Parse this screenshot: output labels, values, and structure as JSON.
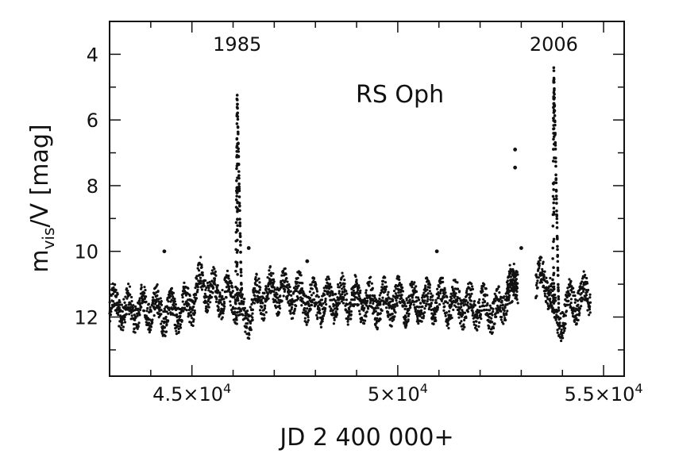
{
  "chart_data": {
    "type": "scatter",
    "title": "RS Oph",
    "xlabel": "JD 2 400 000+",
    "ylabel_main": "m",
    "ylabel_sub": "vis",
    "ylabel_rest": "/V [mag]",
    "xlim": [
      43000,
      55500
    ],
    "ylim": [
      13.8,
      3.0
    ],
    "y_inverted": true,
    "grid": false,
    "x_ticks_labeled": [
      {
        "value": 45000,
        "mantissa": "4.5×10",
        "exp": "4"
      },
      {
        "value": 50000,
        "mantissa": "5×10",
        "exp": "4"
      },
      {
        "value": 55000,
        "mantissa": "5.5×10",
        "exp": "4"
      }
    ],
    "y_ticks_labeled": [
      4,
      6,
      8,
      10,
      12
    ],
    "annotations": [
      {
        "text": "1985",
        "x": 46100,
        "y": 3.8
      },
      {
        "text": "2006",
        "x": 53790,
        "y": 3.8
      }
    ],
    "series": [
      {
        "marker": "dot",
        "color": "#111111",
        "quiescent_level": [
          [
            43000,
            11.6
          ],
          [
            43500,
            11.8
          ],
          [
            44000,
            11.7
          ],
          [
            44500,
            11.9
          ],
          [
            45000,
            11.6
          ],
          [
            45200,
            10.9
          ],
          [
            45600,
            11.3
          ],
          [
            46000,
            11.4
          ],
          [
            46300,
            12.1
          ],
          [
            46600,
            11.4
          ],
          [
            47000,
            11.2
          ],
          [
            47500,
            11.3
          ],
          [
            48000,
            11.6
          ],
          [
            48500,
            11.4
          ],
          [
            49000,
            11.5
          ],
          [
            49500,
            11.6
          ],
          [
            50000,
            11.5
          ],
          [
            50500,
            11.6
          ],
          [
            51000,
            11.5
          ],
          [
            51500,
            11.6
          ],
          [
            52000,
            11.7
          ],
          [
            52500,
            11.8
          ],
          [
            52700,
            11.0
          ],
          [
            53000,
            11.2
          ],
          [
            53300,
            10.8
          ],
          [
            53700,
            11.0
          ],
          [
            53850,
            12.3
          ],
          [
            54100,
            11.7
          ],
          [
            54400,
            11.4
          ],
          [
            54600,
            11.3
          ]
        ],
        "outbursts": [
          {
            "peak_x": 46100,
            "peak_y": 5.2,
            "rise": 40,
            "decay": 110
          },
          {
            "peak_x": 53790,
            "peak_y": 4.4,
            "rise": 30,
            "decay": 120
          }
        ],
        "isolated_points": [
          [
            52850,
            6.9
          ],
          [
            52850,
            7.45
          ],
          [
            44330,
            10.0
          ],
          [
            46380,
            9.9
          ],
          [
            50950,
            10.0
          ],
          [
            47800,
            10.3
          ],
          [
            53000,
            9.9
          ]
        ]
      }
    ]
  }
}
